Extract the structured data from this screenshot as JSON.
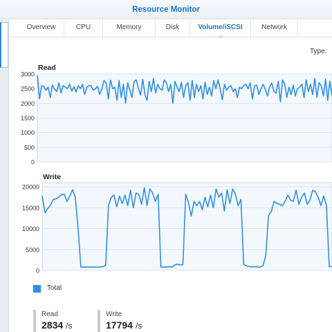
{
  "window": {
    "title": "Resource Monitor"
  },
  "tabs": [
    {
      "label": "Overview",
      "active": false
    },
    {
      "label": "CPU",
      "active": false
    },
    {
      "label": "Memory",
      "active": false
    },
    {
      "label": "Disk",
      "active": false
    },
    {
      "label": "Volume/iSCSI",
      "active": true
    },
    {
      "label": "Network",
      "active": false
    }
  ],
  "type_label": "Type:",
  "legend": {
    "label": "Total",
    "color": "#2f8fe6"
  },
  "stats": {
    "read": {
      "label": "Read",
      "value": "2834",
      "unit": "/s"
    },
    "write": {
      "label": "Write",
      "value": "17794",
      "unit": "/s"
    }
  },
  "chart_data": [
    {
      "type": "line",
      "title": "Read",
      "ylim": [
        0,
        3000
      ],
      "yticks": [
        0,
        500,
        1000,
        1500,
        2000,
        2500,
        3000
      ],
      "grid": true,
      "series": [
        {
          "color": "#2f8fe6",
          "values": [
            2950,
            2150,
            2600,
            2580,
            2450,
            2550,
            2200,
            2620,
            2480,
            2400,
            2700,
            2350,
            2600,
            2550,
            2500,
            2650,
            2420,
            2560,
            2380,
            2600,
            2500,
            2650,
            2300,
            2550,
            2600,
            2600,
            2450,
            2500,
            2580,
            2300,
            2500,
            2780,
            2700,
            2150,
            2800,
            2500,
            2550,
            2100,
            2780,
            2200,
            2650,
            2000,
            2700,
            2450,
            2200,
            2750,
            2800,
            2500,
            2280,
            2820,
            2300,
            2100,
            2750,
            2400,
            2850,
            2350,
            2650,
            2500,
            2450,
            2800,
            2700,
            2400,
            2650,
            2000,
            2750,
            2550,
            2400,
            2720,
            2200,
            2600,
            2700,
            2100,
            2780,
            2200,
            2650,
            2400,
            2600,
            2150,
            2720,
            2300,
            2550,
            2250,
            2780,
            2500,
            2800,
            2500,
            2120,
            2650,
            2450,
            2550,
            2600,
            2400,
            2500,
            2200,
            2550,
            2500,
            2600,
            2650,
            2500,
            2700,
            2150,
            2600,
            2620,
            2300,
            2500,
            2650,
            2480,
            2250,
            2550,
            2700,
            2400,
            2350,
            2750,
            2050,
            2800,
            2650,
            2200,
            2550,
            2300,
            2620,
            2250,
            2500,
            2550,
            2650,
            2200,
            2800,
            2400,
            2650,
            2300,
            2850,
            2200,
            2700,
            2600,
            2250,
            2820,
            2100,
            2750,
            2250
          ]
        }
      ]
    },
    {
      "type": "line",
      "title": "Write",
      "ylim": [
        0,
        21000
      ],
      "yticks": [
        0,
        5000,
        10000,
        15000,
        20000
      ],
      "grid": true,
      "series": [
        {
          "color": "#2f8fe6",
          "values": [
            17800,
            13800,
            14800,
            15600,
            17000,
            17100,
            17500,
            18200,
            18200,
            16500,
            17800,
            19300,
            17500,
            10000,
            800,
            800,
            800,
            850,
            850,
            800,
            800,
            850,
            900,
            1200,
            15500,
            17500,
            18000,
            15200,
            17800,
            16000,
            18000,
            15500,
            19200,
            15000,
            18500,
            18200,
            15800,
            19800,
            15500,
            19500,
            18500,
            16500,
            18200,
            800,
            800,
            850,
            900,
            800,
            1300,
            1500,
            1300,
            1400,
            18200,
            16200,
            13000,
            16500,
            15500,
            16500,
            14500,
            17500,
            15200,
            18000,
            15000,
            19500,
            17500,
            18500,
            14200,
            19300,
            16000,
            19500,
            18200,
            15500,
            17000,
            1500,
            1100,
            900,
            850,
            900,
            850,
            800,
            1100,
            3500,
            13200,
            14000,
            16500,
            16000,
            15800,
            15500,
            16500,
            18000,
            16800,
            16500,
            19200,
            15800,
            17500,
            18500,
            15800,
            16800,
            19200,
            18800,
            17500,
            15500,
            17800,
            15500,
            900,
            1000
          ]
        }
      ]
    }
  ]
}
